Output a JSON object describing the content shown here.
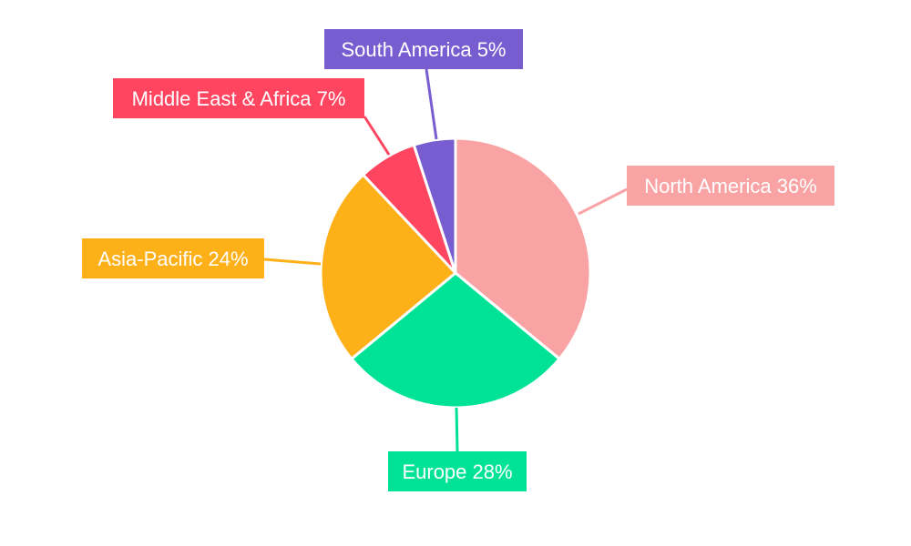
{
  "chart_data": {
    "type": "pie",
    "title": "",
    "start_angle": "top, clockwise",
    "slices": [
      {
        "label": "North America",
        "value": 36,
        "text": "North America 36%",
        "color": "#f9a3a4"
      },
      {
        "label": "Europe",
        "value": 28,
        "text": "Europe 28%",
        "color": "#00e396"
      },
      {
        "label": "Asia-Pacific",
        "value": 24,
        "text": "Asia-Pacific 24%",
        "color": "#feb019"
      },
      {
        "label": "Middle East & Africa",
        "value": 7,
        "text": "Middle East & Africa 7%",
        "color": "#ff4560"
      },
      {
        "label": "South America",
        "value": 5,
        "text": "South America 5%",
        "color": "#775dd0"
      }
    ]
  }
}
